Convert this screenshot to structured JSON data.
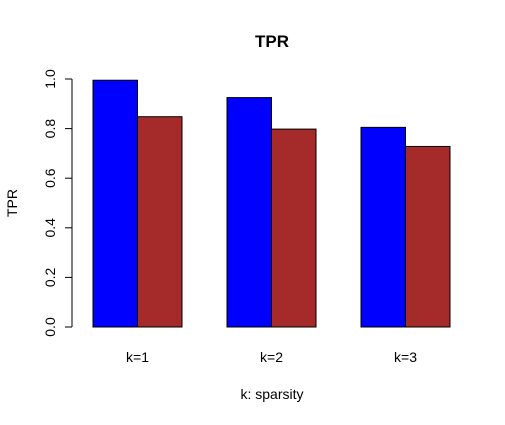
{
  "chart_data": {
    "type": "bar",
    "title": "TPR",
    "xlabel": "k: sparsity",
    "ylabel": "TPR",
    "categories": [
      "k=1",
      "k=2",
      "k=3"
    ],
    "series": [
      {
        "color": "#0000ff",
        "values": [
          0.995,
          0.925,
          0.805
        ]
      },
      {
        "color": "#a52a2a",
        "values": [
          0.848,
          0.798,
          0.728
        ]
      }
    ],
    "ylim": [
      0,
      1
    ],
    "yticks": [
      0,
      0.2,
      0.4,
      0.6,
      0.8,
      1
    ],
    "ytick_labels": [
      "0.0",
      "0.2",
      "0.4",
      "0.6",
      "0.8",
      "1.0"
    ],
    "grid": false,
    "legend": "none"
  }
}
